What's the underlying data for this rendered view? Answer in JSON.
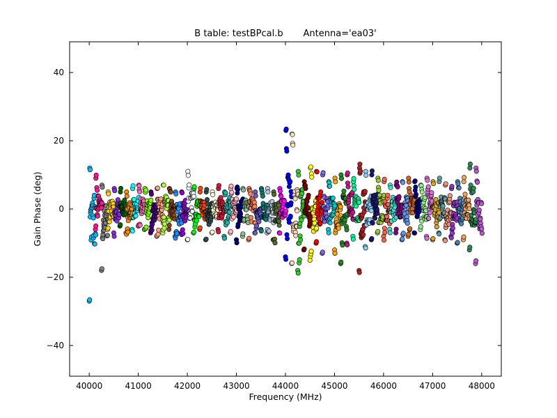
{
  "chart_data": {
    "type": "scatter",
    "title": "B table: testBPcal.b       Antenna='ea03'",
    "xlabel": "Frequency (MHz)",
    "ylabel": "Gain Phase (deg)",
    "xlim": [
      39600,
      48400
    ],
    "ylim": [
      -49,
      49
    ],
    "xticks": [
      40000,
      41000,
      42000,
      43000,
      44000,
      45000,
      46000,
      47000,
      48000
    ],
    "yticks": [
      -40,
      -20,
      0,
      20,
      40
    ],
    "grid": false,
    "legend": "none",
    "marker": "circle",
    "marker_edge_color": "#000000",
    "spw_count": 64,
    "spw_start_mhz": 40000,
    "spw_width_mhz": 125,
    "channels_per_spw": 14,
    "spw_colors": [
      "#00bfff",
      "#ff1493",
      "#808080",
      "#ffd700",
      "#8a2be2",
      "#006400",
      "#ff8c00",
      "#00ffff",
      "#ff69b4",
      "#7fff00",
      "#4b0082",
      "#ffa07a",
      "#adff2f",
      "#8b4513",
      "#1e90ff",
      "#9400d3",
      "#f0f8ff",
      "#00ff00",
      "#ff4500",
      "#2f4f4f",
      "#fffacd",
      "#dc143c",
      "#20b2aa",
      "#ffb6c1",
      "#000080",
      "#8fbc8f",
      "#ff7f50",
      "#6a5acd",
      "#008080",
      "#b0c4de",
      "#556b2f",
      "#ff00ff",
      "#0000ff",
      "#ffdab9",
      "#32cd32",
      "#800000",
      "#ffff00",
      "#ff0000",
      "#7b68ee",
      "#00ced1",
      "#ffa500",
      "#228b22",
      "#c71585",
      "#00fa9a",
      "#b22222",
      "#87cefa",
      "#191970",
      "#9acd32",
      "#ff6347",
      "#40e0d0",
      "#8b008b",
      "#6495ed",
      "#d2691e",
      "#00008b",
      "#90ee90",
      "#da70d6",
      "#daa520",
      "#5f9ea0",
      "#e9967a",
      "#9932cc",
      "#4682b4",
      "#f4a460",
      "#2e8b57",
      "#ba55d3"
    ],
    "spw_ranges": [
      [
        -27,
        12
      ],
      [
        -6,
        9
      ],
      [
        -18,
        7
      ],
      [
        -6,
        5
      ],
      [
        -7,
        6
      ],
      [
        -5,
        5
      ],
      [
        -7,
        5
      ],
      [
        -6,
        6
      ],
      [
        -5,
        7
      ],
      [
        -6,
        6
      ],
      [
        -7,
        5
      ],
      [
        -8,
        6
      ],
      [
        -7,
        7
      ],
      [
        -6,
        6
      ],
      [
        -8,
        5
      ],
      [
        -7,
        5
      ],
      [
        -9,
        11
      ],
      [
        -7,
        6
      ],
      [
        -6,
        5
      ],
      [
        -9,
        5
      ],
      [
        -7,
        5
      ],
      [
        -6,
        6
      ],
      [
        -8,
        5
      ],
      [
        -7,
        6
      ],
      [
        -9,
        6
      ],
      [
        -8,
        6
      ],
      [
        -9,
        6
      ],
      [
        -7,
        5
      ],
      [
        -6,
        6
      ],
      [
        -7,
        6
      ],
      [
        -9,
        5
      ],
      [
        -7,
        6
      ],
      [
        -14,
        23
      ],
      [
        -16,
        22
      ],
      [
        -18,
        11
      ],
      [
        -12,
        8
      ],
      [
        -15,
        12
      ],
      [
        -10,
        11
      ],
      [
        -13,
        10
      ],
      [
        -6,
        8
      ],
      [
        -12,
        9
      ],
      [
        -16,
        10
      ],
      [
        -10,
        10
      ],
      [
        -8,
        8
      ],
      [
        -18,
        12
      ],
      [
        -11,
        11
      ],
      [
        -9,
        10
      ],
      [
        -7,
        9
      ],
      [
        -8,
        8
      ],
      [
        -6,
        7
      ],
      [
        -7,
        7
      ],
      [
        -9,
        8
      ],
      [
        -8,
        9
      ],
      [
        -7,
        8
      ],
      [
        -6,
        7
      ],
      [
        -8,
        9
      ],
      [
        -9,
        8
      ],
      [
        -7,
        8
      ],
      [
        -9,
        7
      ],
      [
        -8,
        6
      ],
      [
        -10,
        8
      ],
      [
        -9,
        8
      ],
      [
        -12,
        12
      ],
      [
        -16,
        12
      ]
    ]
  }
}
